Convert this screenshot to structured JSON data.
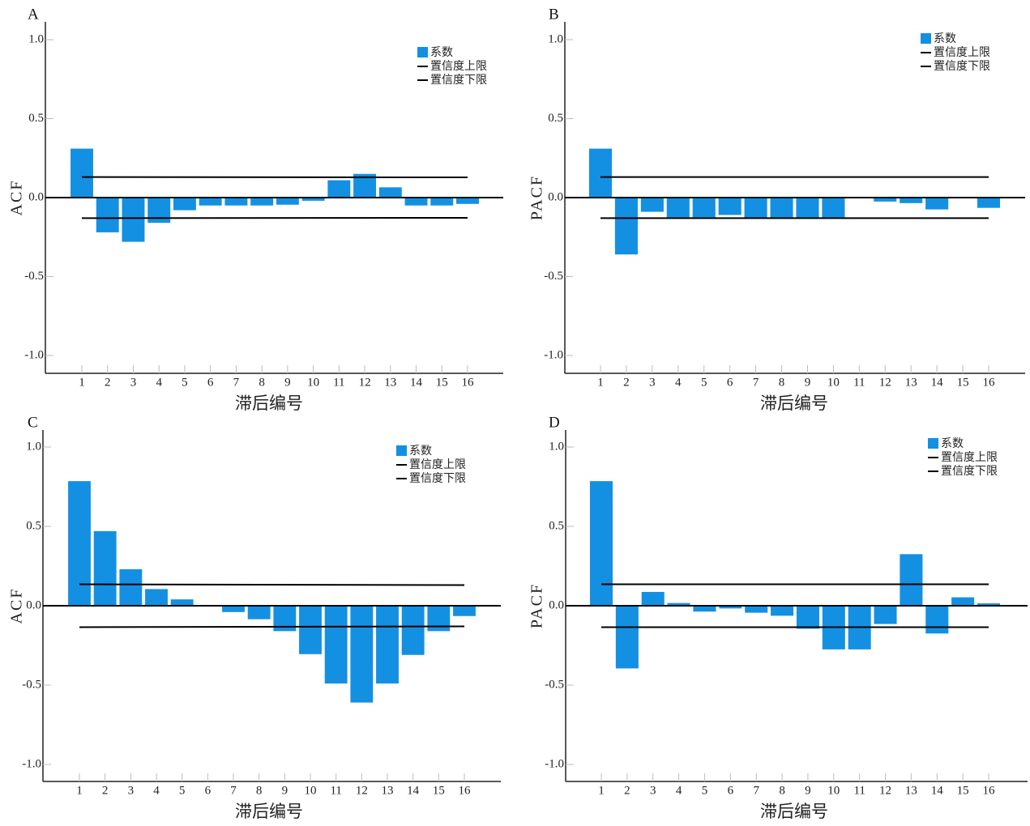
{
  "chart_data": [
    {
      "type": "bar",
      "panel": "A",
      "ylabel": "ACF",
      "xlabel": "滞后编号",
      "ylim": [
        -1.1,
        1.1
      ],
      "yticks": [
        "1.0",
        "0.5",
        "0.0",
        "-0.5",
        "-1.0"
      ],
      "ytick_values": [
        1.0,
        0.5,
        0.0,
        -0.5,
        -1.0
      ],
      "categories": [
        "1",
        "2",
        "3",
        "4",
        "5",
        "6",
        "7",
        "8",
        "9",
        "10",
        "11",
        "12",
        "13",
        "14",
        "15",
        "16"
      ],
      "series": [
        {
          "name": "系数",
          "values": [
            0.31,
            -0.22,
            -0.28,
            -0.16,
            -0.08,
            -0.05,
            -0.05,
            -0.05,
            -0.045,
            -0.02,
            0.11,
            0.15,
            0.065,
            -0.05,
            -0.05,
            -0.04
          ]
        }
      ],
      "confidence_upper": {
        "name": "置信度上限",
        "start": 0.13,
        "end": 0.128
      },
      "confidence_lower": {
        "name": "置信度下限",
        "start": -0.13,
        "end": -0.128
      },
      "legend": [
        "系数",
        "置信度上限",
        "置信度下限"
      ],
      "legend_position": "top-right",
      "grid": false
    },
    {
      "type": "bar",
      "panel": "B",
      "ylabel": "PACF",
      "xlabel": "滞后编号",
      "ylim": [
        -1.1,
        1.1
      ],
      "yticks": [
        "1.0",
        "0.5",
        "0.0",
        "-0.5",
        "-1.0"
      ],
      "ytick_values": [
        1.0,
        0.5,
        0.0,
        -0.5,
        -1.0
      ],
      "categories": [
        "1",
        "2",
        "3",
        "4",
        "5",
        "6",
        "7",
        "8",
        "9",
        "10",
        "11",
        "12",
        "13",
        "14",
        "15",
        "16"
      ],
      "series": [
        {
          "name": "系数",
          "values": [
            0.31,
            -0.36,
            -0.09,
            -0.125,
            -0.125,
            -0.11,
            -0.13,
            -0.13,
            -0.13,
            -0.13,
            -0.003,
            -0.025,
            -0.035,
            -0.075,
            0.0,
            -0.065
          ]
        }
      ],
      "confidence_upper": {
        "name": "置信度上限",
        "start": 0.13,
        "end": 0.13
      },
      "confidence_lower": {
        "name": "置信度下限",
        "start": -0.13,
        "end": -0.13
      },
      "legend": [
        "系数",
        "置信度上限",
        "置信度下限"
      ],
      "legend_position": "top-right",
      "grid": false
    },
    {
      "type": "bar",
      "panel": "C",
      "ylabel": "ACF",
      "xlabel": "滞后编号",
      "ylim": [
        -1.1,
        1.1
      ],
      "yticks": [
        "1.0",
        "0.5",
        "0.0",
        "-0.5",
        "-1.0"
      ],
      "ytick_values": [
        1.0,
        0.5,
        0.0,
        -0.5,
        -1.0
      ],
      "categories": [
        "1",
        "2",
        "3",
        "4",
        "5",
        "6",
        "7",
        "8",
        "9",
        "10",
        "11",
        "12",
        "13",
        "14",
        "15",
        "16"
      ],
      "series": [
        {
          "name": "系数",
          "values": [
            0.785,
            0.47,
            0.23,
            0.105,
            0.04,
            0.0,
            -0.04,
            -0.085,
            -0.16,
            -0.305,
            -0.49,
            -0.61,
            -0.49,
            -0.31,
            -0.16,
            -0.065
          ]
        }
      ],
      "confidence_upper": {
        "name": "置信度上限",
        "start": 0.135,
        "end": 0.13
      },
      "confidence_lower": {
        "name": "置信度下限",
        "start": -0.135,
        "end": -0.13
      },
      "legend": [
        "系数",
        "置信度上限",
        "置信度下限"
      ],
      "legend_position": "top-right",
      "grid": false
    },
    {
      "type": "bar",
      "panel": "D",
      "ylabel": "PACF",
      "xlabel": "滞后编号",
      "ylim": [
        -1.1,
        1.1
      ],
      "yticks": [
        "1.0",
        "0.5",
        "0.0",
        "-0.5",
        "-1.0"
      ],
      "ytick_values": [
        1.0,
        0.5,
        0.0,
        -0.5,
        -1.0
      ],
      "categories": [
        "1",
        "2",
        "3",
        "4",
        "5",
        "6",
        "7",
        "8",
        "9",
        "10",
        "11",
        "12",
        "13",
        "14",
        "15",
        "16"
      ],
      "series": [
        {
          "name": "系数",
          "values": [
            0.785,
            -0.395,
            0.087,
            0.017,
            -0.037,
            -0.017,
            -0.044,
            -0.063,
            -0.145,
            -0.275,
            -0.275,
            -0.115,
            0.325,
            -0.175,
            0.053,
            0.015
          ]
        }
      ],
      "confidence_upper": {
        "name": "置信度上限",
        "start": 0.135,
        "end": 0.135
      },
      "confidence_lower": {
        "name": "置信度下限",
        "start": -0.135,
        "end": -0.135
      },
      "legend": [
        "系数",
        "置信度上限",
        "置信度下限"
      ],
      "legend_position": "top-right",
      "grid": false
    }
  ],
  "colors": {
    "bar": "#1490e3",
    "line": "#000000",
    "axis": "#222222",
    "tick": "#bbbbbb"
  }
}
